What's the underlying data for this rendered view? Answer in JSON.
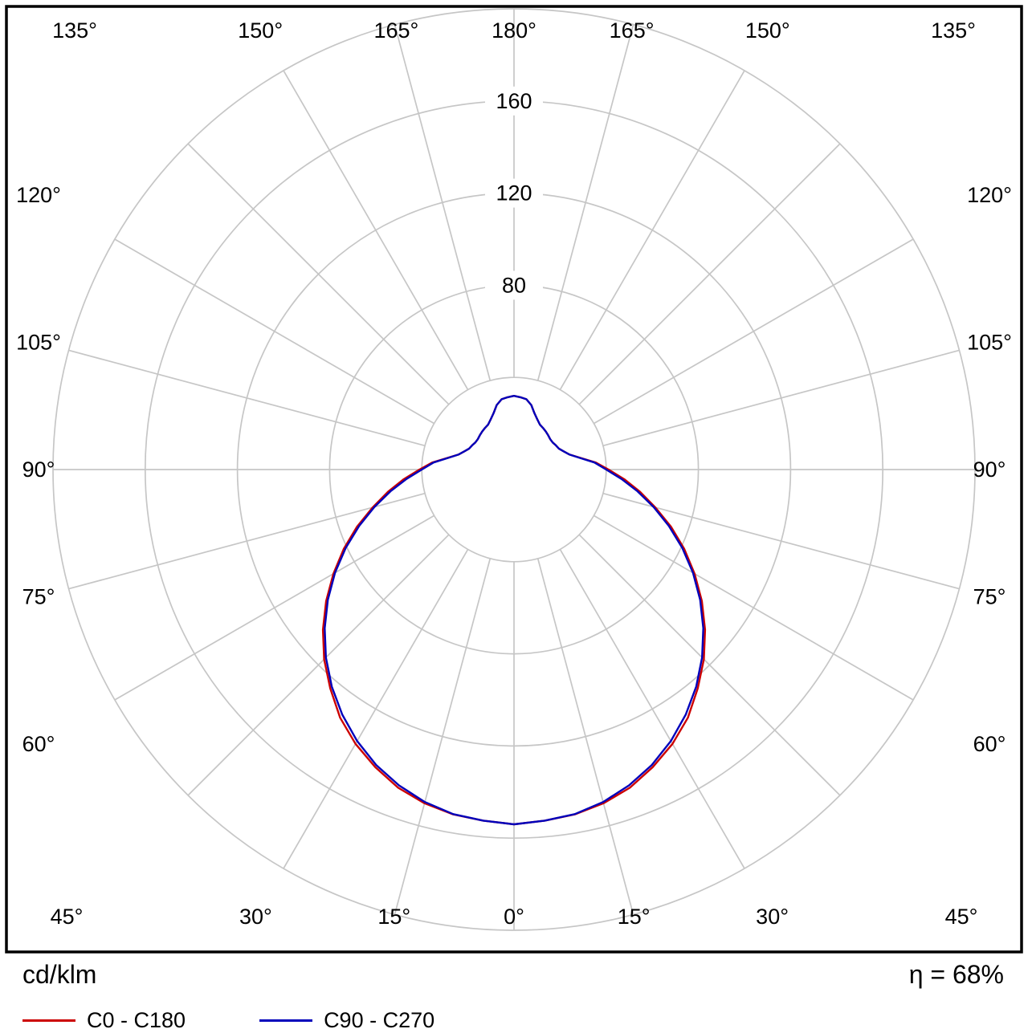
{
  "chart_data": {
    "type": "polar",
    "title": "Luminaire polar intensity diagram",
    "grid_color": "#c6c6c6",
    "frame_color": "#000000",
    "radial_axis": {
      "unit_label": "cd/klm",
      "ticks": [
        40,
        80,
        120,
        160,
        200
      ],
      "labeled_ticks": [
        80,
        120,
        160
      ],
      "max": 200
    },
    "angular_axis": {
      "step_deg": 15,
      "labels": [
        "0°",
        "15°",
        "30°",
        "45°",
        "60°",
        "75°",
        "90°",
        "105°",
        "120°",
        "135°",
        "150°",
        "165°",
        "180°"
      ]
    },
    "efficiency_label": "η = 68%",
    "series": [
      {
        "name": "C0 - C180",
        "color": "#cc0000",
        "gamma_deg": [
          0,
          5,
          10,
          15,
          20,
          25,
          30,
          35,
          40,
          45,
          50,
          55,
          60,
          65,
          70,
          75,
          80,
          85,
          90,
          95,
          100,
          105,
          110,
          115,
          120,
          125,
          130,
          135,
          140,
          145,
          150,
          155,
          160,
          165,
          170,
          175,
          180
        ],
        "values": [
          154,
          153,
          152,
          150,
          147,
          142.5,
          137.5,
          131.5,
          124,
          116.5,
          108.2,
          99.5,
          90.5,
          81.5,
          72.5,
          63.5,
          55.5,
          48,
          41,
          35.5,
          29.2,
          25,
          23,
          21.5,
          21,
          20.5,
          20.5,
          21,
          21.5,
          22,
          22.5,
          24,
          26,
          29,
          31,
          31.5,
          32
        ]
      },
      {
        "name": "C90 - C270",
        "color": "#0000bb",
        "gamma_deg": [
          0,
          5,
          10,
          15,
          20,
          25,
          30,
          35,
          40,
          45,
          50,
          55,
          60,
          65,
          70,
          75,
          80,
          85,
          90,
          95,
          100,
          105,
          110,
          115,
          120,
          125,
          130,
          135,
          140,
          145,
          150,
          155,
          160,
          165,
          170,
          175,
          180
        ],
        "values": [
          154,
          153,
          151.9,
          149.4,
          145.9,
          141.5,
          136.1,
          129.9,
          123,
          115.4,
          107.2,
          98.6,
          89.7,
          80.6,
          71.5,
          62.7,
          54.4,
          46.8,
          40,
          35,
          29,
          25,
          23,
          21.5,
          21,
          20.5,
          20.5,
          21,
          21.5,
          22,
          22.5,
          24,
          26,
          29,
          31,
          31.5,
          32
        ]
      }
    ]
  }
}
